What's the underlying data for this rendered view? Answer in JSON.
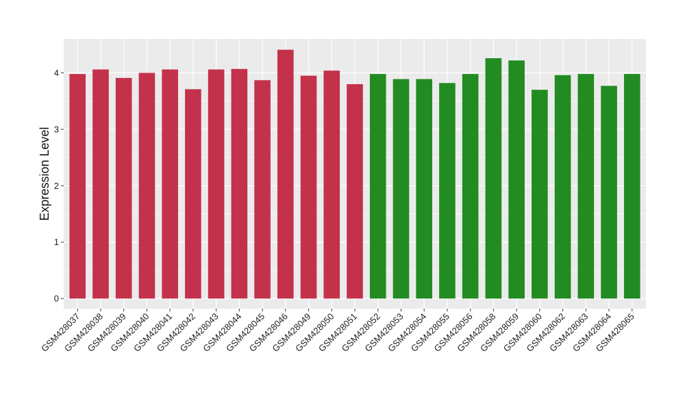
{
  "chart_data": {
    "type": "bar",
    "title": "",
    "xlabel": "",
    "ylabel": "Expression Level",
    "ylim": [
      -0.18,
      4.6
    ],
    "yticks": [
      0,
      1,
      2,
      3,
      4
    ],
    "grid": true,
    "categories": [
      "GSM428037",
      "GSM428038",
      "GSM428039",
      "GSM428040",
      "GSM428041",
      "GSM428042",
      "GSM428043",
      "GSM428044",
      "GSM428045",
      "GSM428046",
      "GSM428049",
      "GSM428050",
      "GSM428051",
      "GSM428052",
      "GSM428053",
      "GSM428054",
      "GSM428055",
      "GSM428056",
      "GSM428058",
      "GSM428059",
      "GSM428060",
      "GSM428062",
      "GSM428063",
      "GSM428064",
      "GSM428065"
    ],
    "values": [
      3.98,
      4.06,
      3.91,
      4.0,
      4.06,
      3.71,
      4.06,
      4.07,
      3.87,
      4.41,
      3.95,
      4.04,
      3.8,
      3.98,
      3.89,
      3.89,
      3.82,
      3.98,
      4.26,
      4.22,
      3.7,
      3.96,
      3.98,
      3.77,
      3.98
    ],
    "groups": [
      0,
      0,
      0,
      0,
      0,
      0,
      0,
      0,
      0,
      0,
      0,
      0,
      0,
      1,
      1,
      1,
      1,
      1,
      1,
      1,
      1,
      1,
      1,
      1,
      1
    ],
    "group_colors": [
      "#c4314b",
      "#228b22"
    ],
    "panel_background": "#ebebeb",
    "grid_color": "#ffffff"
  }
}
